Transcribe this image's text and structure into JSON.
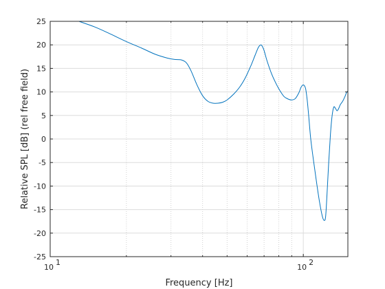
{
  "chart_data": {
    "type": "line",
    "xlabel": "Frequency [Hz]",
    "ylabel": "Relative SPL [dB] (rel free field)",
    "xscale": "log",
    "xlim": [
      10,
      150
    ],
    "ylim": [
      -25,
      25
    ],
    "grid": true,
    "x_ticks": [
      10,
      100
    ],
    "x_tick_labels": [
      {
        "base": "10",
        "exp": "1"
      },
      {
        "base": "10",
        "exp": "2"
      }
    ],
    "y_ticks": [
      -25,
      -20,
      -15,
      -10,
      -5,
      0,
      5,
      10,
      15,
      20,
      25
    ],
    "y_tick_labels": [
      "-25",
      "-20",
      "-15",
      "-10",
      "-5",
      "0",
      "5",
      "10",
      "15",
      "20",
      "25"
    ],
    "series": [
      {
        "color": "#0072BD",
        "x": [
          13.0,
          15.0,
          17.0,
          20.0,
          23.0,
          26.0,
          29.0,
          31.0,
          33.0,
          34.5,
          36.0,
          38.0,
          40.0,
          42.0,
          44.0,
          46.0,
          48.0,
          50.0,
          53.0,
          56.0,
          59.0,
          62.0,
          64.5,
          66.5,
          68.0,
          69.0,
          70.0,
          72.0,
          75.0,
          78.0,
          81.0,
          84.0,
          87.0,
          90.0,
          93.0,
          96.0,
          98.0,
          100.0,
          102.0,
          103.5,
          105.0,
          107.0,
          110.0,
          113.0,
          116.0,
          119.0,
          121.0,
          122.5,
          124.0,
          126.0,
          128.0,
          130.0,
          132.0,
          134.0,
          136.0,
          138.0,
          140.0,
          143.0,
          146.0,
          148.0,
          150.0
        ],
        "y": [
          25.0,
          23.8,
          22.5,
          20.7,
          19.3,
          18.0,
          17.2,
          16.9,
          16.8,
          16.2,
          14.5,
          11.5,
          9.2,
          8.0,
          7.6,
          7.6,
          7.8,
          8.3,
          9.5,
          11.0,
          13.0,
          15.5,
          17.8,
          19.5,
          20.0,
          19.6,
          18.8,
          16.5,
          13.8,
          11.8,
          10.2,
          9.0,
          8.5,
          8.3,
          8.6,
          9.8,
          11.0,
          11.5,
          10.8,
          8.5,
          5.0,
          0.0,
          -5.0,
          -9.5,
          -13.5,
          -16.5,
          -17.3,
          -16.5,
          -12.0,
          -5.0,
          1.0,
          5.0,
          6.8,
          6.5,
          6.0,
          6.5,
          7.3,
          8.0,
          9.0,
          9.8,
          10.2
        ]
      }
    ]
  }
}
